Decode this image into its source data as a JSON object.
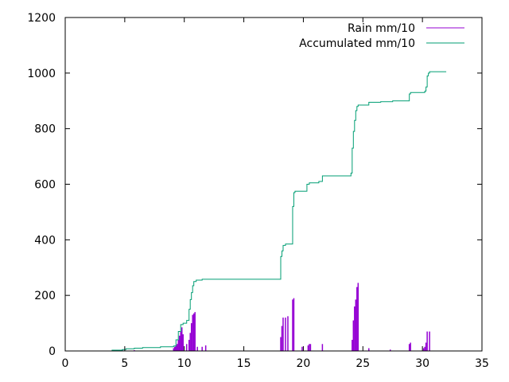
{
  "chart_data": {
    "type": "line",
    "title": "",
    "xlabel": "",
    "ylabel": "",
    "xlim": [
      0,
      35
    ],
    "ylim": [
      0,
      1200
    ],
    "xticks": [
      "0",
      "5",
      "10",
      "15",
      "20",
      "25",
      "30",
      "35"
    ],
    "yticks": [
      "0",
      "200",
      "400",
      "600",
      "800",
      "1000",
      "1200"
    ],
    "grid": false,
    "legend_position": "top-right",
    "series": [
      {
        "name": "Rain mm/10",
        "style": "impulses",
        "color": "#9400d3",
        "x": [
          4.8,
          5.8,
          9.1,
          9.2,
          9.3,
          9.4,
          9.5,
          9.6,
          9.7,
          9.8,
          9.9,
          10.2,
          10.4,
          10.5,
          10.6,
          10.7,
          10.8,
          10.9,
          11.1,
          11.5,
          11.8,
          18.1,
          18.2,
          18.3,
          18.5,
          18.7,
          19.1,
          19.2,
          19.9,
          20.4,
          20.5,
          20.6,
          21.6,
          24.1,
          24.2,
          24.3,
          24.4,
          24.5,
          24.6,
          25.5,
          27.3,
          28.9,
          29.0,
          30.1,
          30.2,
          30.3,
          30.4,
          30.6
        ],
        "values": [
          5,
          3,
          10,
          15,
          20,
          25,
          40,
          55,
          70,
          85,
          60,
          25,
          40,
          65,
          100,
          130,
          135,
          140,
          15,
          15,
          20,
          50,
          90,
          120,
          120,
          125,
          185,
          190,
          15,
          20,
          25,
          25,
          25,
          40,
          110,
          160,
          185,
          230,
          245,
          10,
          5,
          25,
          30,
          10,
          15,
          30,
          70,
          70
        ]
      },
      {
        "name": "Accumulated mm/10",
        "style": "steps",
        "color": "#009e73",
        "x": [
          3.9,
          4.8,
          5.1,
          5.8,
          6.5,
          8.0,
          9.1,
          9.3,
          9.5,
          9.7,
          9.9,
          10.2,
          10.4,
          10.5,
          10.6,
          10.7,
          10.8,
          11.0,
          11.5,
          12.0,
          18.0,
          18.1,
          18.2,
          18.3,
          18.5,
          19.1,
          19.2,
          19.3,
          20.3,
          20.5,
          21.3,
          21.6,
          24.0,
          24.1,
          24.2,
          24.3,
          24.4,
          24.5,
          24.6,
          25.5,
          26.5,
          27.5,
          28.9,
          29.0,
          30.2,
          30.3,
          30.4,
          30.5,
          30.6,
          32.0
        ],
        "values": [
          3,
          5,
          8,
          10,
          12,
          15,
          18,
          40,
          70,
          95,
          100,
          110,
          150,
          185,
          210,
          235,
          250,
          255,
          258,
          258,
          258,
          340,
          360,
          380,
          385,
          520,
          570,
          575,
          600,
          605,
          610,
          630,
          640,
          730,
          790,
          830,
          865,
          880,
          885,
          895,
          897,
          900,
          925,
          930,
          935,
          950,
          990,
          1000,
          1005,
          1005
        ]
      }
    ]
  }
}
